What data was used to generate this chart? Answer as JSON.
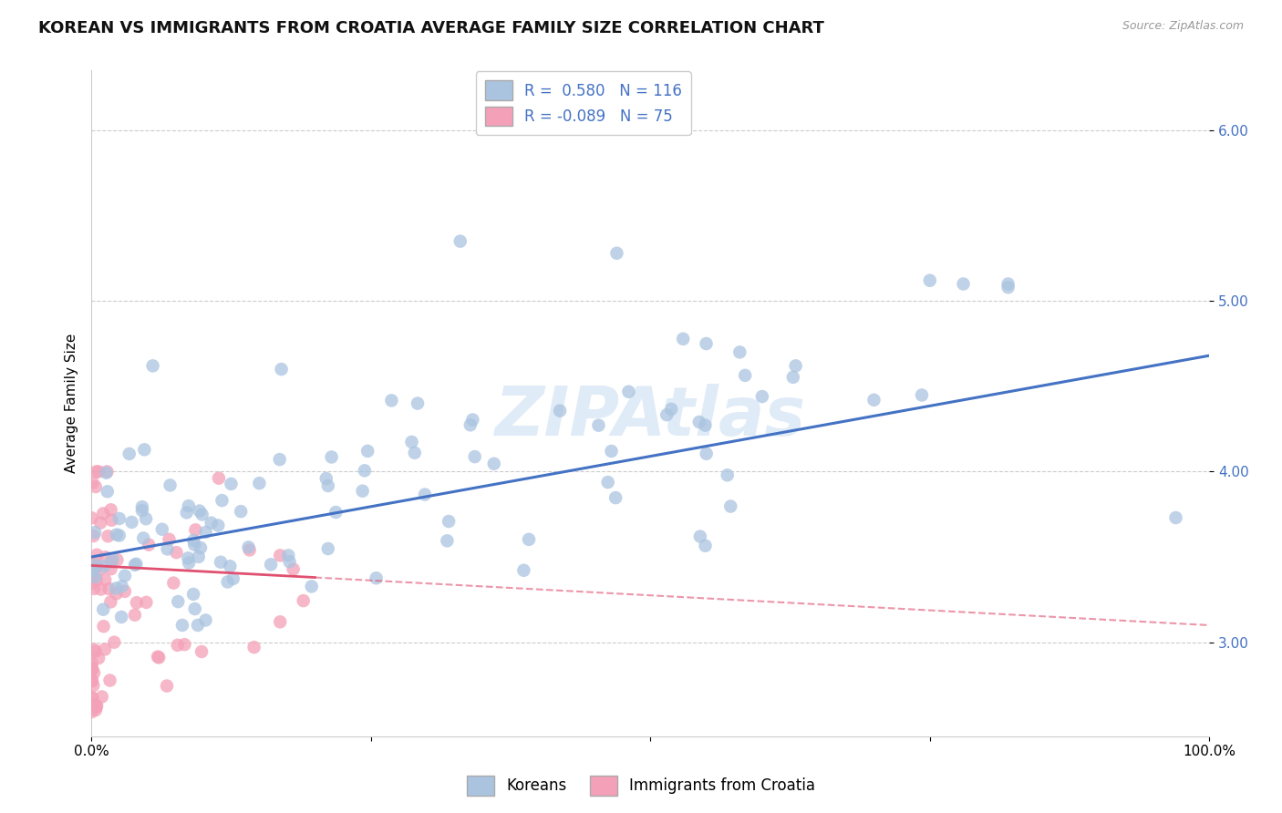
{
  "title": "KOREAN VS IMMIGRANTS FROM CROATIA AVERAGE FAMILY SIZE CORRELATION CHART",
  "source": "Source: ZipAtlas.com",
  "ylabel": "Average Family Size",
  "watermark": "ZIPAtlas",
  "xlim": [
    0,
    1
  ],
  "ylim": [
    2.45,
    6.35
  ],
  "yticks": [
    3.0,
    4.0,
    5.0,
    6.0
  ],
  "xticks": [
    0.0,
    0.25,
    0.5,
    0.75,
    1.0
  ],
  "xticklabels": [
    "0.0%",
    "",
    "",
    "",
    "100.0%"
  ],
  "korean_R": 0.58,
  "korean_N": 116,
  "croatia_R": -0.089,
  "croatia_N": 75,
  "korean_color": "#aac4e0",
  "korean_line_color": "#4472c4",
  "croatia_color": "#f4a0b8",
  "croatia_line_color": "#e05070",
  "grid_color": "#cccccc",
  "background_color": "#ffffff",
  "title_fontsize": 13,
  "axis_label_fontsize": 11,
  "tick_fontsize": 11,
  "tick_color": "#4472c4",
  "legend_fontsize": 12
}
